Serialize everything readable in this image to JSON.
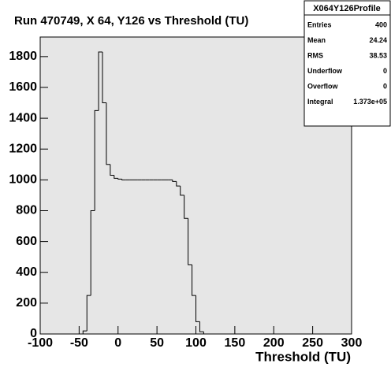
{
  "chart_data": {
    "type": "histogram",
    "title": "Run 470749, X 64, Y126 vs Threshold (TU)",
    "x_label": "Threshold (TU)",
    "color": "#000000",
    "bins": [
      -100,
      -95,
      -90,
      -85,
      -80,
      -75,
      -70,
      -65,
      -60,
      -55,
      -50,
      -45,
      -40,
      -35,
      -30,
      -25,
      -20,
      -15,
      -10,
      -5,
      0,
      5,
      10,
      15,
      20,
      25,
      30,
      35,
      40,
      45,
      50,
      55,
      60,
      65,
      70,
      75,
      80,
      85,
      90,
      95,
      100,
      105,
      110,
      115,
      120,
      125,
      130,
      135,
      140,
      145,
      150,
      155,
      160,
      165,
      170,
      175,
      180,
      185,
      190,
      195,
      200,
      205,
      210,
      215,
      220,
      225,
      230,
      235,
      240,
      245,
      250,
      255,
      260,
      265,
      270,
      275,
      280,
      285,
      290,
      295,
      300
    ],
    "values": [
      0,
      0,
      0,
      0,
      0,
      0,
      0,
      0,
      0,
      0,
      0,
      20,
      250,
      800,
      1450,
      1830,
      1500,
      1100,
      1030,
      1010,
      1005,
      1000,
      1000,
      1000,
      1000,
      1000,
      1000,
      1000,
      1000,
      1000,
      1000,
      1000,
      1000,
      1000,
      990,
      960,
      900,
      750,
      450,
      250,
      80,
      15,
      0,
      0,
      0,
      0,
      0,
      0,
      0,
      0,
      0,
      0,
      0,
      0,
      0,
      0,
      0,
      0,
      0,
      0,
      0,
      0,
      0,
      0,
      0,
      0,
      0,
      0,
      0,
      0,
      0,
      0,
      0,
      0,
      0,
      0,
      0,
      0,
      0,
      0
    ],
    "xlim": [
      -100,
      300
    ],
    "ylim": [
      0,
      1927
    ],
    "xticks": [
      -100,
      -50,
      0,
      50,
      100,
      150,
      200,
      250,
      300
    ],
    "yticks": [
      0,
      200,
      400,
      600,
      800,
      1000,
      1200,
      1400,
      1600,
      1800
    ],
    "stats": {
      "title": "X064Y126Profile",
      "rows": [
        {
          "label": "Entries",
          "value": "400"
        },
        {
          "label": "Mean",
          "value": "24.24"
        },
        {
          "label": "RMS",
          "value": "38.53"
        },
        {
          "label": "Underflow",
          "value": "0"
        },
        {
          "label": "Overflow",
          "value": "0"
        },
        {
          "label": "Integral",
          "value": "1.373e+05"
        }
      ]
    }
  }
}
